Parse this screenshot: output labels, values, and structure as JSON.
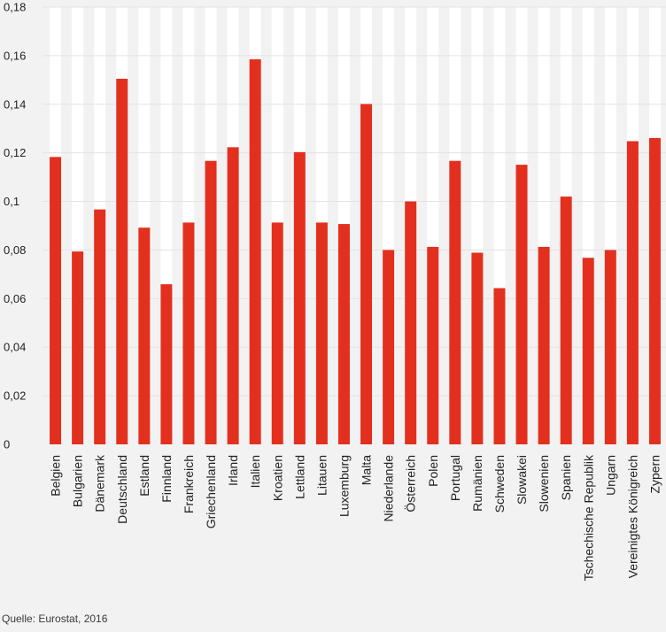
{
  "source_text": "Quelle: Eurostat, 2016",
  "colors": {
    "background": "#f2f2f2",
    "column_band": "#ffffff",
    "bar": "#e3301e",
    "grid": "#e3e3e3",
    "axis_text": "#222222"
  },
  "chart_data": {
    "type": "bar",
    "title": "",
    "xlabel": "",
    "ylabel": "",
    "ylim": [
      0,
      0.18
    ],
    "yticks": [
      0,
      0.02,
      0.04,
      0.06,
      0.08,
      0.1,
      0.12,
      0.14,
      0.16,
      0.18
    ],
    "ytick_labels": [
      "0",
      "0,02",
      "0,04",
      "0,06",
      "0,08",
      "0,1",
      "0,12",
      "0,14",
      "0,16",
      "0,18"
    ],
    "grid": true,
    "legend": "none",
    "categories": [
      "Belgien",
      "Bulgarien",
      "Dänemark",
      "Deutschland",
      "Estland",
      "Finnland",
      "Frankreich",
      "Griechenland",
      "Irland",
      "Italien",
      "Kroatien",
      "Lettland",
      "Litauen",
      "Luxemburg",
      "Malta",
      "Niederlande",
      "Österreich",
      "Polen",
      "Portugal",
      "Rumänien",
      "Schweden",
      "Slowakei",
      "Slowenien",
      "Spanien",
      "Tschechische Republik",
      "Ungarn",
      "Vereinigtes Königreich",
      "Zypern"
    ],
    "values": [
      0.1183,
      0.0794,
      0.0967,
      0.1505,
      0.0892,
      0.0659,
      0.0913,
      0.1167,
      0.1223,
      0.1585,
      0.0913,
      0.1203,
      0.0913,
      0.0907,
      0.1401,
      0.08,
      0.1,
      0.0813,
      0.1167,
      0.0789,
      0.0643,
      0.1151,
      0.0813,
      0.102,
      0.0768,
      0.08,
      0.1248,
      0.1261
    ]
  }
}
